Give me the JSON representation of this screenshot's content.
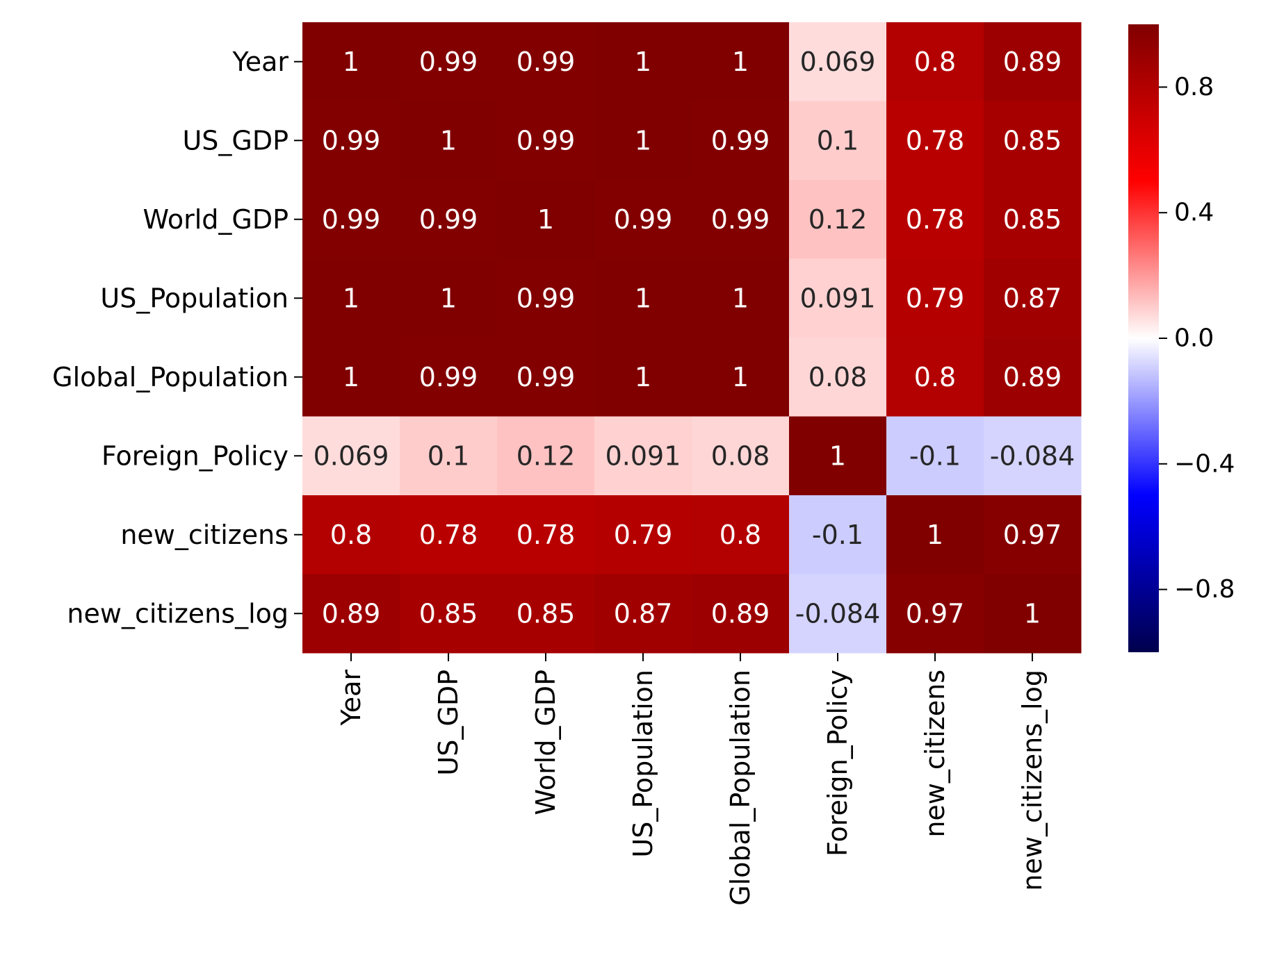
{
  "chart_data": {
    "type": "heatmap",
    "title": "",
    "xlabel": "",
    "ylabel": "",
    "x_categories": [
      "Year",
      "US_GDP",
      "World_GDP",
      "US_Population",
      "Global_Population",
      "Foreign_Policy",
      "new_citizens",
      "new_citizens_log"
    ],
    "y_categories": [
      "Year",
      "US_GDP",
      "World_GDP",
      "US_Population",
      "Global_Population",
      "Foreign_Policy",
      "new_citizens",
      "new_citizens_log"
    ],
    "values": [
      [
        1,
        0.99,
        0.99,
        1,
        1,
        0.069,
        0.8,
        0.89
      ],
      [
        0.99,
        1,
        0.99,
        1,
        0.99,
        0.1,
        0.78,
        0.85
      ],
      [
        0.99,
        0.99,
        1,
        0.99,
        0.99,
        0.12,
        0.78,
        0.85
      ],
      [
        1,
        1,
        0.99,
        1,
        1,
        0.091,
        0.79,
        0.87
      ],
      [
        1,
        0.99,
        0.99,
        1,
        1,
        0.08,
        0.8,
        0.89
      ],
      [
        0.069,
        0.1,
        0.12,
        0.091,
        0.08,
        1,
        -0.1,
        -0.084
      ],
      [
        0.8,
        0.78,
        0.78,
        0.79,
        0.8,
        -0.1,
        1,
        0.97
      ],
      [
        0.89,
        0.85,
        0.85,
        0.87,
        0.89,
        -0.084,
        0.97,
        1
      ]
    ],
    "annotations": [
      [
        "1",
        "0.99",
        "0.99",
        "1",
        "1",
        "0.069",
        "0.8",
        "0.89"
      ],
      [
        "0.99",
        "1",
        "0.99",
        "1",
        "0.99",
        "0.1",
        "0.78",
        "0.85"
      ],
      [
        "0.99",
        "0.99",
        "1",
        "0.99",
        "0.99",
        "0.12",
        "0.78",
        "0.85"
      ],
      [
        "1",
        "1",
        "0.99",
        "1",
        "1",
        "0.091",
        "0.79",
        "0.87"
      ],
      [
        "1",
        "0.99",
        "0.99",
        "1",
        "1",
        "0.08",
        "0.8",
        "0.89"
      ],
      [
        "0.069",
        "0.1",
        "0.12",
        "0.091",
        "0.08",
        "1",
        "-0.1",
        "-0.084"
      ],
      [
        "0.8",
        "0.78",
        "0.78",
        "0.79",
        "0.8",
        "-0.1",
        "1",
        "0.97"
      ],
      [
        "0.89",
        "0.85",
        "0.85",
        "0.87",
        "0.89",
        "-0.084",
        "0.97",
        "1"
      ]
    ],
    "colormap": "seismic",
    "vmin": -1,
    "vmax": 1,
    "colorbar": {
      "ticks": [
        0.8,
        0.4,
        0.0,
        -0.4,
        -0.8
      ],
      "tick_labels": [
        "0.8",
        "0.4",
        "0.0",
        "−0.4",
        "−0.8"
      ],
      "placement": "right"
    },
    "grid": false,
    "legend": "colorbar-right"
  }
}
